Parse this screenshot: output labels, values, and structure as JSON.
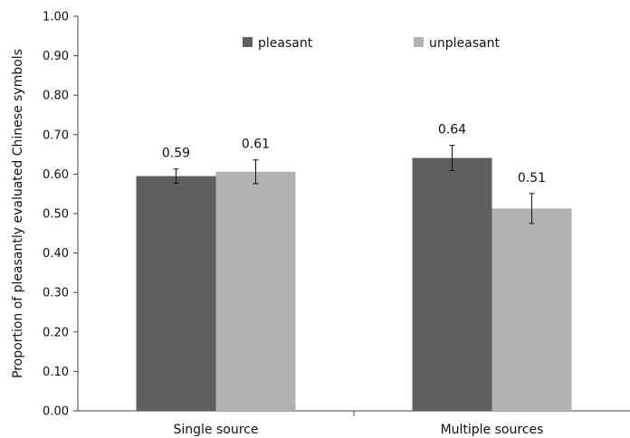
{
  "chart_data": {
    "type": "bar",
    "ylabel": "Proportion of pleasantly evaluated Chinese symbols",
    "ylim": [
      0,
      1
    ],
    "yticks": [
      "0.00",
      "0.10",
      "0.20",
      "0.30",
      "0.40",
      "0.50",
      "0.60",
      "0.70",
      "0.80",
      "0.90",
      "1.00"
    ],
    "categories": [
      "Single source",
      "Multiple sources"
    ],
    "series": [
      {
        "name": "pleasant",
        "color": "#5f5f5f",
        "values": [
          0.595,
          0.641
        ],
        "labels": [
          "0.59",
          "0.64"
        ],
        "err": [
          0.018,
          0.032
        ]
      },
      {
        "name": "unpleasant",
        "color": "#b2b2b2",
        "values": [
          0.606,
          0.513
        ],
        "labels": [
          "0.61",
          "0.51"
        ],
        "err": [
          0.03,
          0.038
        ]
      }
    ],
    "legend_position": "top",
    "grid": false
  }
}
